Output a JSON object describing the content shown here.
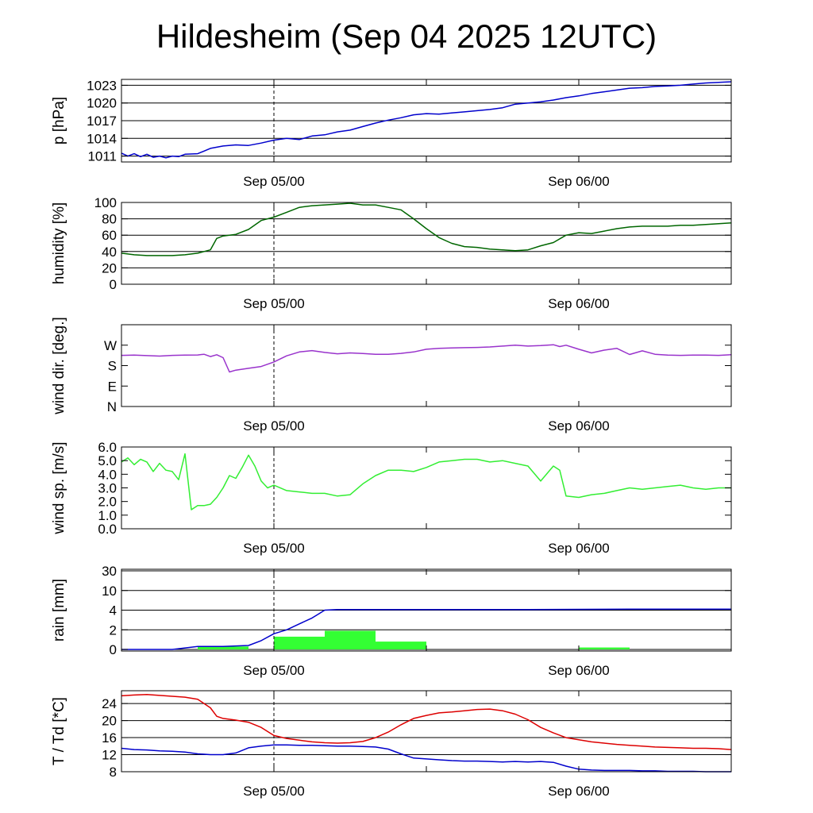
{
  "title": "Hildesheim (Sep 04 2025 12UTC)",
  "chart_data": [
    {
      "type": "line",
      "ylabel": "p [hPa]",
      "ylim": [
        1010,
        1024
      ],
      "yticks": [
        1011,
        1014,
        1017,
        1020,
        1023
      ],
      "xlim": [
        -12,
        36
      ],
      "xticks": [
        0,
        24
      ],
      "xtick_labels": [
        "Sep 05/00",
        "Sep 06/00"
      ],
      "grid": true,
      "series": [
        {
          "color": "#0000cc",
          "x": [
            -12,
            -11.5,
            -11,
            -10.5,
            -10,
            -9.5,
            -9,
            -8.5,
            -8,
            -7.5,
            -7,
            -6,
            -5,
            -4,
            -3,
            -2,
            -1,
            0,
            1,
            2,
            3,
            4,
            5,
            6,
            7,
            8,
            9,
            10,
            11,
            12,
            13,
            14,
            15,
            16,
            17,
            18,
            19,
            20,
            21,
            22,
            23,
            24,
            25,
            26,
            27,
            28,
            29,
            30,
            31,
            32,
            33,
            34,
            35,
            36
          ],
          "y": [
            1011.5,
            1011.0,
            1011.4,
            1010.9,
            1011.3,
            1010.8,
            1011.0,
            1010.7,
            1011.0,
            1010.9,
            1011.3,
            1011.4,
            1012.3,
            1012.7,
            1012.9,
            1012.8,
            1013.2,
            1013.7,
            1014.0,
            1013.8,
            1014.4,
            1014.6,
            1015.1,
            1015.4,
            1016.0,
            1016.6,
            1017.1,
            1017.5,
            1018.0,
            1018.2,
            1018.1,
            1018.3,
            1018.5,
            1018.7,
            1018.9,
            1019.2,
            1019.8,
            1020.0,
            1020.2,
            1020.5,
            1020.9,
            1021.2,
            1021.6,
            1021.9,
            1022.2,
            1022.5,
            1022.6,
            1022.8,
            1022.9,
            1023.0,
            1023.2,
            1023.4,
            1023.5,
            1023.6
          ]
        }
      ]
    },
    {
      "type": "line",
      "ylabel": "humidity [%]",
      "ylim": [
        0,
        100
      ],
      "yticks": [
        0,
        20,
        40,
        60,
        80,
        100
      ],
      "xlim": [
        -12,
        36
      ],
      "xticks": [
        0,
        24
      ],
      "xtick_labels": [
        "Sep 05/00",
        "Sep 06/00"
      ],
      "grid": true,
      "series": [
        {
          "color": "#006600",
          "x": [
            -12,
            -11,
            -10,
            -9,
            -8,
            -7,
            -6,
            -5.5,
            -5,
            -4.5,
            -4,
            -3,
            -2,
            -1,
            0,
            1,
            2,
            3,
            4,
            5,
            6,
            7,
            8,
            9,
            10,
            11,
            12,
            13,
            14,
            15,
            16,
            17,
            18,
            19,
            20,
            21,
            22,
            23,
            24,
            25,
            26,
            27,
            28,
            29,
            30,
            31,
            32,
            33,
            34,
            35,
            36
          ],
          "y": [
            38,
            36,
            35,
            35,
            35,
            36,
            38,
            40,
            42,
            56,
            59,
            61,
            67,
            78,
            82,
            88,
            94,
            96,
            97,
            98,
            99,
            97,
            97,
            94,
            91,
            80,
            68,
            57,
            50,
            46,
            45,
            43,
            42,
            41,
            42,
            47,
            51,
            60,
            63,
            62,
            65,
            68,
            70,
            71,
            71,
            71,
            72,
            72,
            73,
            74,
            75
          ]
        }
      ]
    },
    {
      "type": "line",
      "ylabel": "wind dir. [deg.]",
      "ylim": [
        0,
        360
      ],
      "yticks": [
        0,
        90,
        180,
        270
      ],
      "ytick_labels": [
        "N",
        "E",
        "S",
        "W"
      ],
      "xlim": [
        -12,
        36
      ],
      "xticks": [
        0,
        24
      ],
      "xtick_labels": [
        "Sep 05/00",
        "Sep 06/00"
      ],
      "grid": false,
      "series": [
        {
          "color": "#9933cc",
          "x": [
            -12,
            -11,
            -10,
            -9,
            -8,
            -7,
            -6,
            -5.5,
            -5,
            -4.5,
            -4,
            -3.5,
            -3,
            -2,
            -1,
            0,
            1,
            2,
            3,
            4,
            5,
            6,
            7,
            8,
            9,
            10,
            11,
            12,
            13,
            14,
            15,
            16,
            17,
            18,
            19,
            20,
            21,
            22,
            22.5,
            23,
            24,
            25,
            26,
            27,
            28,
            29,
            30,
            31,
            32,
            33,
            34,
            35,
            36
          ],
          "y": [
            225,
            226,
            224,
            222,
            225,
            226,
            227,
            230,
            220,
            228,
            215,
            152,
            160,
            168,
            176,
            196,
            223,
            240,
            246,
            238,
            232,
            236,
            233,
            230,
            230,
            234,
            240,
            252,
            256,
            258,
            259,
            260,
            262,
            266,
            270,
            266,
            268,
            272,
            264,
            270,
            252,
            236,
            248,
            256,
            229,
            245,
            230,
            226,
            225,
            226,
            226,
            225,
            228
          ]
        }
      ]
    },
    {
      "type": "line",
      "ylabel": "wind sp. [m/s]",
      "ylim": [
        0,
        6
      ],
      "yticks": [
        0,
        1,
        2,
        3,
        4,
        5,
        6
      ],
      "ytick_labels": [
        "0.0",
        "1.0",
        "2.0",
        "3.0",
        "4.0",
        "5.0",
        "6.0"
      ],
      "xlim": [
        -12,
        36
      ],
      "xticks": [
        0,
        24
      ],
      "xtick_labels": [
        "Sep 05/00",
        "Sep 06/00"
      ],
      "grid": false,
      "series": [
        {
          "color": "#33ee33",
          "x": [
            -12,
            -11.5,
            -11,
            -10.5,
            -10,
            -9.5,
            -9,
            -8.5,
            -8,
            -7.5,
            -7,
            -6.5,
            -6,
            -5.5,
            -5,
            -4.5,
            -4,
            -3.5,
            -3,
            -2.5,
            -2,
            -1.5,
            -1,
            -0.5,
            0,
            1,
            2,
            3,
            4,
            5,
            6,
            7,
            8,
            9,
            10,
            11,
            12,
            13,
            14,
            15,
            16,
            17,
            18,
            19,
            20,
            21,
            22,
            22.5,
            23,
            24,
            25,
            26,
            27,
            28,
            29,
            30,
            31,
            32,
            33,
            34,
            35,
            36
          ],
          "y": [
            4.9,
            5.2,
            4.7,
            5.1,
            4.9,
            4.2,
            4.8,
            4.3,
            4.2,
            3.6,
            5.5,
            1.4,
            1.7,
            1.7,
            1.8,
            2.3,
            3.0,
            3.9,
            3.7,
            4.5,
            5.4,
            4.6,
            3.5,
            3.0,
            3.2,
            2.8,
            2.7,
            2.6,
            2.6,
            2.4,
            2.5,
            3.3,
            3.9,
            4.3,
            4.3,
            4.2,
            4.5,
            4.9,
            5.0,
            5.1,
            5.1,
            4.9,
            5.0,
            4.8,
            4.6,
            3.5,
            4.6,
            4.3,
            2.4,
            2.3,
            2.5,
            2.6,
            2.8,
            3.0,
            2.9,
            3.0,
            3.1,
            3.2,
            3.0,
            2.9,
            3.0,
            3.0
          ]
        }
      ]
    },
    {
      "type": "bar",
      "ylabel": "rain [mm]",
      "yticks": [
        0,
        2,
        4,
        10,
        30
      ],
      "xlim": [
        -12,
        36
      ],
      "xticks": [
        0,
        24
      ],
      "xtick_labels": [
        "Sep 05/00",
        "Sep 06/00"
      ],
      "grid": true,
      "bars": {
        "color": "#33ff33",
        "x_start": [
          -6,
          0,
          4,
          8,
          24
        ],
        "x_end": [
          -2,
          4,
          8,
          12,
          28
        ],
        "values": [
          0.3,
          1.3,
          1.9,
          0.8,
          0.2
        ]
      },
      "series": [
        {
          "color": "#0000cc",
          "x": [
            -12,
            -8,
            -6,
            -4,
            -2,
            -1,
            0,
            1,
            2,
            3,
            3.5,
            4,
            5,
            6,
            8,
            12,
            20,
            28,
            36
          ],
          "y": [
            0,
            0,
            0.3,
            0.3,
            0.4,
            0.9,
            1.6,
            2.0,
            2.6,
            3.2,
            3.6,
            4.0,
            4.2,
            4.2,
            4.2,
            4.2,
            4.2,
            4.3,
            4.3
          ]
        }
      ]
    },
    {
      "type": "line",
      "ylabel": "T / Td [*C]",
      "ylim": [
        8,
        27
      ],
      "yticks": [
        8,
        12,
        16,
        20,
        24
      ],
      "xlim": [
        -12,
        36
      ],
      "xticks": [
        0,
        24
      ],
      "xtick_labels": [
        "Sep 05/00",
        "Sep 06/00"
      ],
      "grid": true,
      "series": [
        {
          "color": "#dd0000",
          "x": [
            -12,
            -11,
            -10,
            -9,
            -8,
            -7,
            -6,
            -5.5,
            -5,
            -4.5,
            -4,
            -3,
            -2,
            -1,
            0,
            1,
            2,
            3,
            4,
            5,
            6,
            7,
            8,
            9,
            10,
            11,
            12,
            13,
            14,
            15,
            16,
            17,
            18,
            19,
            20,
            21,
            22,
            23,
            24,
            25,
            26,
            27,
            28,
            29,
            30,
            31,
            32,
            33,
            34,
            35,
            36
          ],
          "y": [
            25.8,
            26.0,
            26.1,
            25.9,
            25.7,
            25.5,
            25.0,
            24.0,
            23.0,
            21.0,
            20.5,
            20.1,
            19.6,
            18.4,
            16.5,
            15.8,
            15.4,
            15.0,
            14.8,
            14.7,
            14.8,
            15.1,
            16.0,
            17.3,
            19.0,
            20.5,
            21.2,
            21.8,
            22.0,
            22.3,
            22.6,
            22.7,
            22.3,
            21.5,
            20.2,
            18.4,
            17.1,
            16.0,
            15.5,
            15.0,
            14.7,
            14.4,
            14.2,
            14.0,
            13.8,
            13.7,
            13.6,
            13.5,
            13.5,
            13.4,
            13.2
          ]
        },
        {
          "color": "#0000cc",
          "x": [
            -12,
            -11,
            -10,
            -9,
            -8,
            -7,
            -6,
            -5,
            -4,
            -3,
            -2,
            -1,
            0,
            1,
            2,
            3,
            4,
            5,
            6,
            7,
            8,
            9,
            10,
            11,
            12,
            13,
            14,
            15,
            16,
            17,
            18,
            19,
            20,
            21,
            22,
            23,
            24,
            25,
            26,
            27,
            28,
            29,
            30,
            31,
            32,
            33,
            34,
            35,
            36
          ],
          "y": [
            13.5,
            13.2,
            13.1,
            12.9,
            12.8,
            12.6,
            12.2,
            12.0,
            12.0,
            12.4,
            13.6,
            14.0,
            14.3,
            14.3,
            14.2,
            14.2,
            14.1,
            14.0,
            14.0,
            13.9,
            13.8,
            13.3,
            12.2,
            11.2,
            11.0,
            10.8,
            10.6,
            10.5,
            10.5,
            10.4,
            10.3,
            10.4,
            10.3,
            10.4,
            10.2,
            9.3,
            8.6,
            8.4,
            8.3,
            8.3,
            8.3,
            8.2,
            8.2,
            8.1,
            8.1,
            8.1,
            8.0,
            8.0,
            8.0
          ]
        }
      ]
    }
  ]
}
